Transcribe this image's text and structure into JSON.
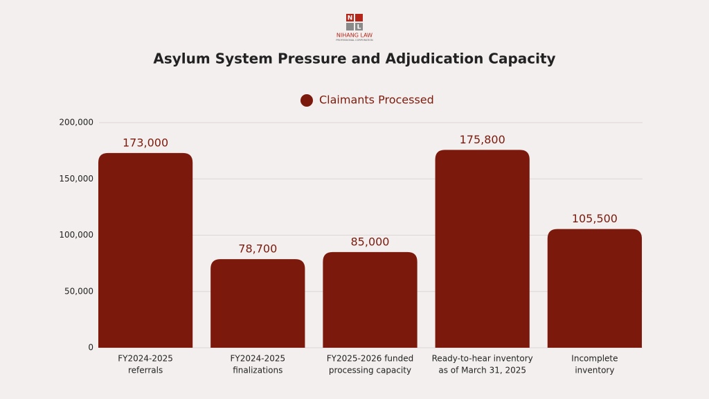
{
  "logo": {
    "letters": [
      "N",
      "L"
    ],
    "name": "NIHANG LAW",
    "tagline": "PROFESSIONAL CORPORATION"
  },
  "chart_data": {
    "type": "bar",
    "title": "Asylum System Pressure and Adjudication Capacity",
    "categories": [
      [
        "FY2024-2025",
        "referrals"
      ],
      [
        "FY2024-2025",
        "finalizations"
      ],
      [
        "FY2025-2026 funded",
        "processing capacity"
      ],
      [
        "Ready-to-hear inventory",
        "as of March 31, 2025"
      ],
      [
        "Incomplete",
        "inventory"
      ]
    ],
    "series": [
      {
        "name": "Claimants Processed",
        "color": "#7b1a0c",
        "values": [
          173000,
          78700,
          85000,
          175800,
          105500
        ],
        "value_labels": [
          "173,000",
          "78,700",
          "85,000",
          "175,800",
          "105,500"
        ]
      }
    ],
    "ylim": [
      0,
      200000
    ],
    "yticks": [
      0,
      {
        "value": 50000,
        "label": "50,000"
      },
      {
        "value": 100000,
        "label": "100,000"
      },
      {
        "value": 150000,
        "label": "150,000"
      },
      {
        "value": 200000,
        "label": "200,000"
      }
    ],
    "grid": true,
    "legend": "top"
  }
}
